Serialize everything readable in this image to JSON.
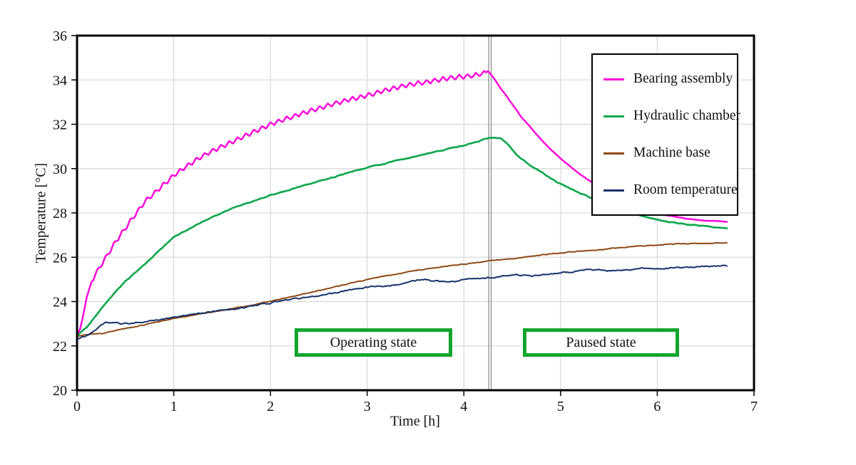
{
  "figure": {
    "xlabel": "Time [h]",
    "ylabel": "Temperature [°C]",
    "background": "#ffffff",
    "border_color": "#000000",
    "grid_color": "#d9d9d9",
    "tick_text_color": "#111111",
    "marker_line_color": "#8f8f8f",
    "annotation_border_color": "#11a52e",
    "annotations": [
      {
        "id": "operating",
        "label": "Operating state"
      },
      {
        "id": "paused",
        "label": "Paused state"
      }
    ]
  },
  "chart_data": {
    "type": "line",
    "title": "",
    "xlabel": "Time [h]",
    "ylabel": "Temperature [°C]",
    "xlim": [
      0,
      7
    ],
    "ylim": [
      20,
      36
    ],
    "xticks": [
      0,
      1,
      2,
      3,
      4,
      5,
      6,
      7
    ],
    "yticks": [
      20,
      22,
      24,
      26,
      28,
      30,
      32,
      34,
      36
    ],
    "grid": true,
    "legend_position": "upper right",
    "state_change_marker_t": 4.27,
    "series": [
      {
        "name": "Bearing assembly",
        "color": "#ff00d9",
        "width": 2.4,
        "zorder": 4,
        "noise": 0.015,
        "ripple": {
          "amplitude": 0.1,
          "period": 0.085,
          "t_start": 0.15,
          "t_end": 4.24
        },
        "points": [
          [
            0,
            22.5
          ],
          [
            0.03,
            22.75
          ],
          [
            0.06,
            23.3
          ],
          [
            0.1,
            24.2
          ],
          [
            0.15,
            24.9
          ],
          [
            0.2,
            25.3
          ],
          [
            0.3,
            26.0
          ],
          [
            0.4,
            26.7
          ],
          [
            0.5,
            27.3
          ],
          [
            0.6,
            27.9
          ],
          [
            0.7,
            28.5
          ],
          [
            0.8,
            28.9
          ],
          [
            0.9,
            29.3
          ],
          [
            1,
            29.7
          ],
          [
            1.1,
            30.0
          ],
          [
            1.2,
            30.3
          ],
          [
            1.35,
            30.7
          ],
          [
            1.5,
            31.0
          ],
          [
            1.65,
            31.3
          ],
          [
            1.8,
            31.6
          ],
          [
            2,
            32.0
          ],
          [
            2.2,
            32.3
          ],
          [
            2.4,
            32.6
          ],
          [
            2.6,
            32.85
          ],
          [
            2.8,
            33.1
          ],
          [
            3,
            33.3
          ],
          [
            3.2,
            33.55
          ],
          [
            3.4,
            33.75
          ],
          [
            3.6,
            33.9
          ],
          [
            3.8,
            34.05
          ],
          [
            4,
            34.15
          ],
          [
            4.1,
            34.2
          ],
          [
            4.2,
            34.3
          ],
          [
            4.25,
            34.4
          ],
          [
            4.3,
            34.15
          ],
          [
            4.4,
            33.5
          ],
          [
            4.5,
            32.9
          ],
          [
            4.6,
            32.3
          ],
          [
            4.7,
            31.8
          ],
          [
            4.8,
            31.3
          ],
          [
            4.9,
            30.85
          ],
          [
            5,
            30.45
          ],
          [
            5.1,
            30.1
          ],
          [
            5.2,
            29.75
          ],
          [
            5.3,
            29.45
          ],
          [
            5.4,
            29.15
          ],
          [
            5.5,
            28.9
          ],
          [
            5.6,
            28.65
          ],
          [
            5.7,
            28.45
          ],
          [
            5.8,
            28.25
          ],
          [
            5.9,
            28.1
          ],
          [
            6,
            27.95
          ],
          [
            6.15,
            27.85
          ],
          [
            6.3,
            27.75
          ],
          [
            6.5,
            27.65
          ],
          [
            6.72,
            27.6
          ]
        ]
      },
      {
        "name": "Hydraulic chamber",
        "color": "#0ca64c",
        "width": 2.6,
        "zorder": 3,
        "noise": 0.025,
        "points": [
          [
            0,
            22.45
          ],
          [
            0.1,
            22.85
          ],
          [
            0.2,
            23.4
          ],
          [
            0.3,
            23.95
          ],
          [
            0.4,
            24.45
          ],
          [
            0.5,
            24.9
          ],
          [
            0.6,
            25.3
          ],
          [
            0.7,
            25.7
          ],
          [
            0.8,
            26.1
          ],
          [
            0.9,
            26.5
          ],
          [
            1,
            26.9
          ],
          [
            1.15,
            27.25
          ],
          [
            1.3,
            27.6
          ],
          [
            1.45,
            27.9
          ],
          [
            1.6,
            28.2
          ],
          [
            1.8,
            28.5
          ],
          [
            2,
            28.8
          ],
          [
            2.2,
            29.05
          ],
          [
            2.4,
            29.3
          ],
          [
            2.6,
            29.55
          ],
          [
            2.8,
            29.8
          ],
          [
            3,
            30.05
          ],
          [
            3.2,
            30.25
          ],
          [
            3.4,
            30.45
          ],
          [
            3.6,
            30.65
          ],
          [
            3.8,
            30.85
          ],
          [
            4,
            31.05
          ],
          [
            4.1,
            31.15
          ],
          [
            4.2,
            31.3
          ],
          [
            4.3,
            31.4
          ],
          [
            4.38,
            31.35
          ],
          [
            4.45,
            31.1
          ],
          [
            4.55,
            30.6
          ],
          [
            4.7,
            30.1
          ],
          [
            4.85,
            29.7
          ],
          [
            5,
            29.3
          ],
          [
            5.15,
            29.0
          ],
          [
            5.3,
            28.7
          ],
          [
            5.5,
            28.35
          ],
          [
            5.7,
            28.05
          ],
          [
            5.9,
            27.8
          ],
          [
            6.1,
            27.6
          ],
          [
            6.3,
            27.5
          ],
          [
            6.5,
            27.4
          ],
          [
            6.72,
            27.3
          ]
        ]
      },
      {
        "name": "Machine base",
        "color": "#8f4a15",
        "width": 2.0,
        "zorder": 1,
        "noise": 0.02,
        "points": [
          [
            0,
            22.45
          ],
          [
            0.3,
            22.6
          ],
          [
            0.6,
            22.85
          ],
          [
            1,
            23.25
          ],
          [
            1.5,
            23.6
          ],
          [
            2,
            24.0
          ],
          [
            2.5,
            24.5
          ],
          [
            3,
            25.0
          ],
          [
            3.5,
            25.4
          ],
          [
            4,
            25.7
          ],
          [
            4.3,
            25.85
          ],
          [
            4.7,
            26.05
          ],
          [
            5,
            26.2
          ],
          [
            5.4,
            26.35
          ],
          [
            5.8,
            26.5
          ],
          [
            6.2,
            26.6
          ],
          [
            6.72,
            26.65
          ]
        ]
      },
      {
        "name": "Room temperature",
        "color": "#17336b",
        "width": 2.0,
        "zorder": 2,
        "noise": 0.035,
        "points": [
          [
            0,
            22.3
          ],
          [
            0.1,
            22.45
          ],
          [
            0.18,
            22.7
          ],
          [
            0.25,
            22.95
          ],
          [
            0.3,
            23.05
          ],
          [
            0.45,
            23.0
          ],
          [
            0.6,
            23.05
          ],
          [
            0.8,
            23.15
          ],
          [
            1,
            23.3
          ],
          [
            1.2,
            23.45
          ],
          [
            1.4,
            23.55
          ],
          [
            1.6,
            23.65
          ],
          [
            1.8,
            23.8
          ],
          [
            2,
            23.95
          ],
          [
            2.2,
            24.1
          ],
          [
            2.4,
            24.2
          ],
          [
            2.6,
            24.35
          ],
          [
            2.8,
            24.5
          ],
          [
            3,
            24.65
          ],
          [
            3.15,
            24.7
          ],
          [
            3.3,
            24.75
          ],
          [
            3.45,
            24.9
          ],
          [
            3.6,
            25.0
          ],
          [
            3.75,
            24.9
          ],
          [
            3.9,
            24.9
          ],
          [
            4.05,
            25.0
          ],
          [
            4.2,
            25.05
          ],
          [
            4.4,
            25.15
          ],
          [
            4.55,
            25.2
          ],
          [
            4.7,
            25.15
          ],
          [
            4.9,
            25.25
          ],
          [
            5.1,
            25.35
          ],
          [
            5.3,
            25.45
          ],
          [
            5.5,
            25.4
          ],
          [
            5.7,
            25.45
          ],
          [
            5.9,
            25.5
          ],
          [
            6.1,
            25.5
          ],
          [
            6.3,
            25.55
          ],
          [
            6.5,
            25.6
          ],
          [
            6.72,
            25.6
          ]
        ]
      }
    ]
  }
}
